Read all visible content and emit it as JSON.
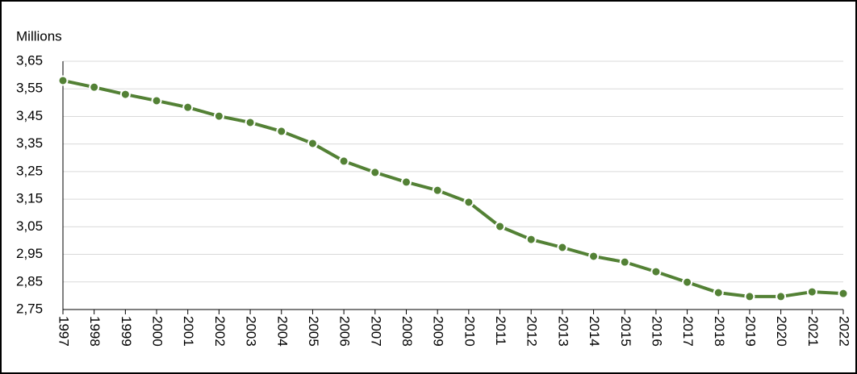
{
  "chart_data": {
    "type": "line",
    "y_label": "Millions",
    "categories": [
      "1997",
      "1998",
      "1999",
      "2000",
      "2001",
      "2002",
      "2003",
      "2004",
      "2005",
      "2006",
      "2007",
      "2008",
      "2009",
      "2010",
      "2011",
      "2012",
      "2013",
      "2014",
      "2015",
      "2016",
      "2017",
      "2018",
      "2019",
      "2020",
      "2021",
      "2022"
    ],
    "values": [
      3.58,
      3.556,
      3.53,
      3.507,
      3.483,
      3.451,
      3.428,
      3.396,
      3.352,
      3.288,
      3.247,
      3.212,
      3.182,
      3.139,
      3.051,
      3.004,
      2.975,
      2.943,
      2.922,
      2.887,
      2.849,
      2.811,
      2.797,
      2.797,
      2.814,
      2.808
    ],
    "color": "#538135",
    "ylim": [
      2.75,
      3.65
    ],
    "yticks": [
      {
        "value": 2.75,
        "label": "2,75"
      },
      {
        "value": 2.85,
        "label": "2,85"
      },
      {
        "value": 2.95,
        "label": "2,95"
      },
      {
        "value": 3.05,
        "label": "3,05"
      },
      {
        "value": 3.15,
        "label": "3,15"
      },
      {
        "value": 3.25,
        "label": "3,25"
      },
      {
        "value": 3.35,
        "label": "3,35"
      },
      {
        "value": 3.45,
        "label": "3,45"
      },
      {
        "value": 3.55,
        "label": "3,55"
      },
      {
        "value": 3.65,
        "label": "3,65"
      }
    ],
    "grid": true
  }
}
